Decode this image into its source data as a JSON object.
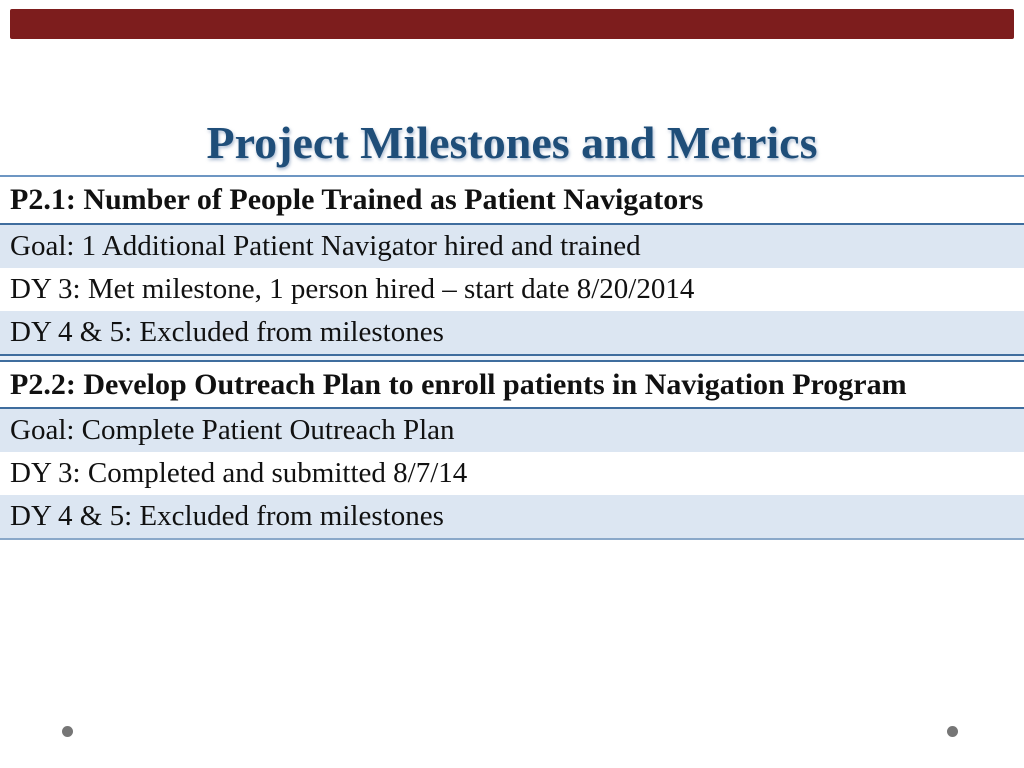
{
  "slide": {
    "title": "Project Milestones and Metrics",
    "sections": [
      {
        "header": "P2.1: Number of People Trained as Patient Navigators",
        "rows": [
          "Goal: 1 Additional Patient Navigator hired and trained",
          "DY 3: Met milestone, 1 person hired – start date 8/20/2014",
          "DY 4 & 5: Excluded from milestones"
        ]
      },
      {
        "header": "P2.2: Develop Outreach Plan to enroll patients in Navigation Program",
        "rows": [
          "Goal: Complete Patient Outreach Plan",
          "DY 3: Completed and submitted 8/7/14",
          "DY 4 & 5: Excluded from milestones"
        ]
      }
    ],
    "colors": {
      "accent_bar": "#7D1D1D",
      "title_text": "#1F4E79",
      "row_alt_background": "#DCE6F2",
      "table_border": "#3F6D9E",
      "footer_dot": "#767676"
    }
  }
}
